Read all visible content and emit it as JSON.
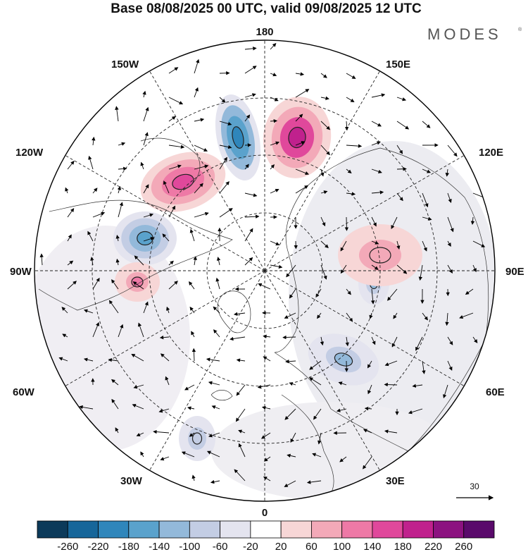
{
  "header": {
    "title": "Base 08/08/2025 00 UTC, valid 09/08/2025 12 UTC",
    "brand": "MODES",
    "brand_mark": "®"
  },
  "map": {
    "projection": "north-polar-stereographic",
    "longitude_labels": {
      "top": "180",
      "bottom": "0",
      "left": "90W",
      "right": "90E",
      "upper_left": "150W",
      "upper_right": "150E",
      "mid_upper_left": "120W",
      "mid_upper_right": "120E",
      "mid_lower_left": "60W",
      "mid_lower_right": "60E",
      "lower_left": "30W",
      "lower_right": "30E"
    },
    "reference_vector": {
      "label": "30"
    }
  },
  "colorbar": {
    "ticks": [
      "-260",
      "-220",
      "-180",
      "-140",
      "-100",
      "-60",
      "-20",
      "20",
      "60",
      "100",
      "140",
      "180",
      "220",
      "260"
    ],
    "colors": [
      "#0c3a5a",
      "#16669a",
      "#2f86bb",
      "#5aa2cc",
      "#93b9da",
      "#c3cde4",
      "#e4e4ef",
      "#ffffff",
      "#f7d6d6",
      "#f3a9b8",
      "#ee79a6",
      "#e0489b",
      "#c0218d",
      "#8c1280",
      "#5a0a6b"
    ]
  },
  "anomalies": [
    {
      "name": "low-north-pacific",
      "sign": "negative",
      "level": -200
    },
    {
      "name": "high-east-siberian",
      "sign": "positive",
      "level": 200
    },
    {
      "name": "high-alaska-gulf",
      "sign": "positive",
      "level": 160
    },
    {
      "name": "low-canada",
      "sign": "negative",
      "level": -160
    },
    {
      "name": "high-west-canada",
      "sign": "positive",
      "level": 110
    },
    {
      "name": "low-central-asia",
      "sign": "negative",
      "level": -110
    },
    {
      "name": "high-central-asia",
      "sign": "positive",
      "level": 90
    },
    {
      "name": "low-north-atlantic",
      "sign": "negative",
      "level": -110
    },
    {
      "name": "low-mid-atlantic",
      "sign": "negative",
      "level": -90
    }
  ]
}
